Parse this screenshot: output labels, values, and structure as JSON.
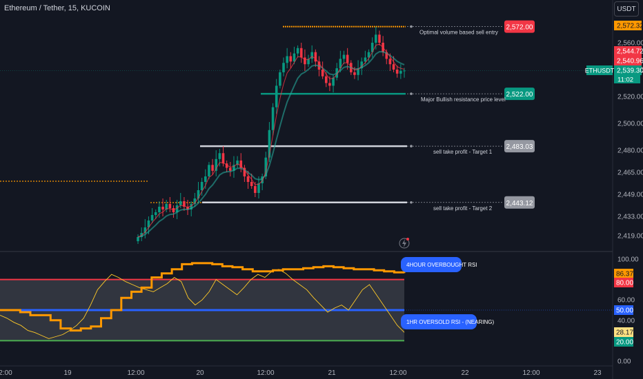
{
  "header": {
    "title": "Ethereum / Tether, 15, KUCOIN",
    "currency": "USDT"
  },
  "chart_data": {
    "type": "candlestick",
    "symbol": "ETHUSDT",
    "price_axis": {
      "ticks": [
        "2,560.00",
        "2,540.00",
        "2,520.00",
        "2,500.00",
        "2,480.00",
        "2,465.00",
        "2,449.00",
        "2,433.00",
        "2,419.00"
      ],
      "tick_values": [
        2560,
        2540,
        2520,
        2500,
        2480,
        2465,
        2449,
        2433,
        2419
      ],
      "labels": [
        {
          "text": "2,572.32",
          "value": 2572.32,
          "color": "#ff9800"
        },
        {
          "text": "2,544.72",
          "value": 2544.72,
          "color": "#f23645"
        },
        {
          "text": "2,540.96",
          "value": 2540.96,
          "color": "#f23645"
        },
        {
          "text": "ETHUSDT",
          "value": 2539.3,
          "color": "#089981",
          "current": true
        },
        {
          "text": "2,539.30",
          "value": 2539.3,
          "color": "#089981"
        },
        {
          "text": "11:02",
          "value": 2539.3,
          "color": "#089981",
          "sub": true
        }
      ]
    },
    "rsi_axis": {
      "ticks": [
        "100.00",
        "60.00",
        "40.00",
        "0.00"
      ],
      "tick_values": [
        100,
        60,
        40,
        0
      ],
      "labels": [
        {
          "text": "86.37",
          "value": 86.37,
          "color": "#ff9800"
        },
        {
          "text": "80.00",
          "value": 80,
          "color": "#f23645"
        },
        {
          "text": "50.00",
          "value": 50,
          "color": "#2962ff"
        },
        {
          "text": "28.17",
          "value": 28.17,
          "color": "#ffe082"
        },
        {
          "text": "20.00",
          "value": 20,
          "color": "#089981"
        }
      ]
    },
    "time_axis": [
      "2:00",
      "19",
      "12:00",
      "20",
      "12:00",
      "21",
      "12:00",
      "22",
      "12:00",
      "23"
    ],
    "levels": [
      {
        "name": "sell-entry",
        "price": 2572,
        "label": "2,572.00",
        "note": "Optimal volume based sell entry",
        "color": "#f23645",
        "line": "#ff9800"
      },
      {
        "name": "resistance",
        "price": 2522,
        "label": "2,522.00",
        "note": "Major Bullish resistance price level",
        "color": "#089981",
        "line": "#089981"
      },
      {
        "name": "target-1",
        "price": 2483.03,
        "label": "2,483.03",
        "note": "sell take profit - Target 1",
        "color": "#9598a1",
        "line": "#d1d4dc"
      },
      {
        "name": "target-2",
        "price": 2443.12,
        "label": "2,443.12",
        "note": "sell take profit - Target 2",
        "color": "#9598a1",
        "line": "#d1d4dc"
      }
    ],
    "rsi_notes": [
      {
        "text": "4HOUR OVERBOUGHT RSI",
        "value": 90
      },
      {
        "text": "1HR OVERSOLD RSI - (NEARING)",
        "value": 37
      }
    ],
    "rsi_bands": {
      "upper": 80,
      "middle": 50,
      "lower": 20
    },
    "close_series": [
      2418,
      2421,
      2425,
      2430,
      2434,
      2436,
      2440,
      2438,
      2442,
      2439,
      2436,
      2441,
      2444,
      2440,
      2438,
      2442,
      2446,
      2452,
      2458,
      2462,
      2470,
      2466,
      2474,
      2478,
      2471,
      2468,
      2466,
      2470,
      2473,
      2468,
      2462,
      2458,
      2455,
      2450,
      2457,
      2462,
      2475,
      2495,
      2512,
      2528,
      2538,
      2545,
      2550,
      2546,
      2552,
      2556,
      2549,
      2544,
      2548,
      2553,
      2546,
      2540,
      2535,
      2530,
      2528,
      2534,
      2541,
      2548,
      2551,
      2545,
      2538,
      2536,
      2541,
      2546,
      2549,
      2553,
      2560,
      2566,
      2560,
      2553,
      2548,
      2544,
      2540,
      2537,
      2539,
      2539.3
    ],
    "rsi_4h": [
      50,
      50,
      48,
      45,
      45,
      40,
      32,
      30,
      32,
      34,
      42,
      50,
      62,
      68,
      72,
      82,
      86,
      90,
      95,
      96,
      96,
      95,
      93,
      92,
      90,
      88,
      88,
      89,
      90,
      90,
      91,
      92,
      93,
      92,
      91,
      90,
      90,
      89,
      88,
      87,
      86.37
    ],
    "rsi_1h": [
      45,
      42,
      38,
      35,
      30,
      28,
      25,
      22,
      24,
      26,
      30,
      35,
      42,
      55,
      70,
      78,
      85,
      82,
      78,
      75,
      72,
      70,
      68,
      72,
      76,
      82,
      78,
      62,
      55,
      60,
      68,
      80,
      75,
      70,
      65,
      72,
      80,
      85,
      82,
      88,
      90,
      86,
      80,
      75,
      70,
      62,
      55,
      48,
      52,
      55,
      50,
      60,
      70,
      75,
      65,
      55,
      45,
      35,
      28.17
    ]
  }
}
